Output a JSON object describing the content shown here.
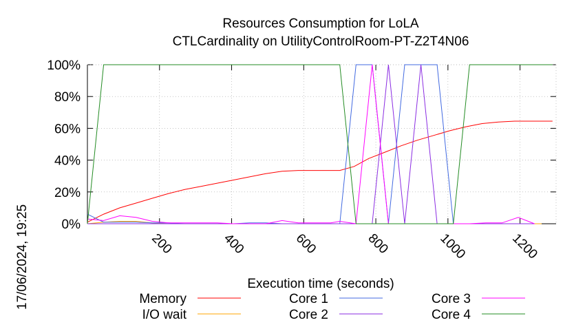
{
  "chart_data": {
    "type": "line",
    "title": "Resources Consumption for LoLA",
    "subtitle": "CTLCardinality on UtilityControlRoom-PT-Z2T4N06",
    "timestamp": "17/06/2024, 19:25",
    "xlabel": "Execution time (seconds)",
    "ylabel": "",
    "xlim": [
      0,
      1300
    ],
    "ylim": [
      0,
      100
    ],
    "x_ticks": [
      200,
      400,
      600,
      800,
      1000,
      1200
    ],
    "y_ticks": [
      0,
      20,
      40,
      60,
      80,
      100
    ],
    "y_tick_labels": [
      "0%",
      "20%",
      "40%",
      "60%",
      "80%",
      "100%"
    ],
    "grid": true,
    "legend_placement": "bottom",
    "series": [
      {
        "name": "Memory",
        "color": "#ff0000",
        "points": [
          [
            0,
            1
          ],
          [
            45,
            6
          ],
          [
            90,
            10
          ],
          [
            135,
            13
          ],
          [
            180,
            16
          ],
          [
            225,
            19
          ],
          [
            270,
            21.5
          ],
          [
            315,
            23.5
          ],
          [
            360,
            25.5
          ],
          [
            405,
            27.5
          ],
          [
            450,
            29.5
          ],
          [
            495,
            31.5
          ],
          [
            540,
            33
          ],
          [
            585,
            33.5
          ],
          [
            630,
            33.5
          ],
          [
            675,
            33.5
          ],
          [
            700,
            33.5
          ],
          [
            740,
            36
          ],
          [
            780,
            41
          ],
          [
            825,
            45
          ],
          [
            870,
            49
          ],
          [
            915,
            52.5
          ],
          [
            960,
            55.5
          ],
          [
            1005,
            58.5
          ],
          [
            1050,
            61
          ],
          [
            1095,
            63
          ],
          [
            1140,
            64
          ],
          [
            1185,
            64.5
          ],
          [
            1230,
            64.5
          ],
          [
            1290,
            64.5
          ]
        ]
      },
      {
        "name": "I/O wait",
        "color": "#ffa500",
        "points": [
          [
            0,
            0
          ],
          [
            45,
            1
          ],
          [
            90,
            1.5
          ],
          [
            135,
            1.5
          ],
          [
            180,
            0.5
          ],
          [
            225,
            0
          ],
          [
            270,
            0
          ],
          [
            315,
            0
          ],
          [
            360,
            0
          ],
          [
            405,
            0
          ],
          [
            450,
            0
          ],
          [
            495,
            0
          ],
          [
            540,
            0
          ],
          [
            585,
            0
          ],
          [
            630,
            0
          ],
          [
            675,
            0
          ],
          [
            720,
            0
          ],
          [
            765,
            0
          ],
          [
            810,
            0
          ],
          [
            855,
            0
          ],
          [
            900,
            0
          ],
          [
            945,
            0
          ],
          [
            990,
            0
          ],
          [
            1035,
            0
          ],
          [
            1080,
            0
          ],
          [
            1125,
            0
          ],
          [
            1170,
            0
          ],
          [
            1215,
            0
          ],
          [
            1260,
            0
          ]
        ]
      },
      {
        "name": "Core 1",
        "color": "#4169e1",
        "points": [
          [
            0,
            6
          ],
          [
            45,
            1
          ],
          [
            90,
            1
          ],
          [
            135,
            1
          ],
          [
            180,
            0.5
          ],
          [
            225,
            0.5
          ],
          [
            270,
            0
          ],
          [
            315,
            0
          ],
          [
            360,
            0
          ],
          [
            405,
            0
          ],
          [
            450,
            0.5
          ],
          [
            495,
            0.5
          ],
          [
            540,
            0
          ],
          [
            585,
            0
          ],
          [
            630,
            0
          ],
          [
            675,
            0
          ],
          [
            700,
            0
          ],
          [
            745,
            100
          ],
          [
            790,
            100
          ],
          [
            835,
            0
          ],
          [
            880,
            100
          ],
          [
            925,
            100
          ],
          [
            970,
            100
          ],
          [
            1015,
            0
          ],
          [
            1060,
            0
          ],
          [
            1105,
            0
          ],
          [
            1150,
            0
          ],
          [
            1195,
            0
          ],
          [
            1240,
            0
          ]
        ]
      },
      {
        "name": "Core 2",
        "color": "#8a2be2",
        "points": [
          [
            0,
            0
          ],
          [
            45,
            0
          ],
          [
            90,
            0
          ],
          [
            135,
            0
          ],
          [
            180,
            0
          ],
          [
            225,
            0
          ],
          [
            270,
            0
          ],
          [
            315,
            0
          ],
          [
            360,
            0
          ],
          [
            405,
            0
          ],
          [
            450,
            0
          ],
          [
            495,
            0
          ],
          [
            540,
            0
          ],
          [
            585,
            0
          ],
          [
            630,
            0
          ],
          [
            675,
            0
          ],
          [
            720,
            0
          ],
          [
            745,
            0
          ],
          [
            790,
            0
          ],
          [
            835,
            100
          ],
          [
            880,
            0
          ],
          [
            925,
            100
          ],
          [
            970,
            0
          ],
          [
            1015,
            0
          ],
          [
            1060,
            0
          ],
          [
            1105,
            0
          ],
          [
            1150,
            0
          ],
          [
            1195,
            0
          ],
          [
            1240,
            0
          ]
        ]
      },
      {
        "name": "Core 3",
        "color": "#ff00ff",
        "points": [
          [
            0,
            3
          ],
          [
            45,
            2
          ],
          [
            90,
            5
          ],
          [
            135,
            4
          ],
          [
            180,
            1.5
          ],
          [
            225,
            0.5
          ],
          [
            270,
            0.5
          ],
          [
            315,
            0.5
          ],
          [
            360,
            0.5
          ],
          [
            405,
            0
          ],
          [
            450,
            0
          ],
          [
            495,
            0
          ],
          [
            540,
            2
          ],
          [
            585,
            0.5
          ],
          [
            630,
            0.5
          ],
          [
            675,
            0.5
          ],
          [
            700,
            1.5
          ],
          [
            745,
            0
          ],
          [
            790,
            100
          ],
          [
            835,
            0
          ],
          [
            880,
            0
          ],
          [
            925,
            0
          ],
          [
            970,
            0
          ],
          [
            1015,
            0
          ],
          [
            1060,
            0
          ],
          [
            1105,
            0.5
          ],
          [
            1150,
            0.5
          ],
          [
            1195,
            4
          ],
          [
            1240,
            0
          ]
        ]
      },
      {
        "name": "Core 4",
        "color": "#228b22",
        "points": [
          [
            0,
            0
          ],
          [
            45,
            100
          ],
          [
            90,
            100
          ],
          [
            135,
            100
          ],
          [
            180,
            100
          ],
          [
            225,
            100
          ],
          [
            270,
            100
          ],
          [
            315,
            100
          ],
          [
            360,
            100
          ],
          [
            405,
            100
          ],
          [
            450,
            100
          ],
          [
            495,
            100
          ],
          [
            540,
            100
          ],
          [
            585,
            100
          ],
          [
            630,
            100
          ],
          [
            675,
            100
          ],
          [
            700,
            100
          ],
          [
            745,
            0
          ],
          [
            790,
            0
          ],
          [
            835,
            0
          ],
          [
            880,
            0
          ],
          [
            925,
            0
          ],
          [
            970,
            0
          ],
          [
            1015,
            0
          ],
          [
            1060,
            100
          ],
          [
            1105,
            100
          ],
          [
            1150,
            100
          ],
          [
            1195,
            100
          ],
          [
            1240,
            100
          ],
          [
            1290,
            100
          ]
        ]
      }
    ]
  }
}
